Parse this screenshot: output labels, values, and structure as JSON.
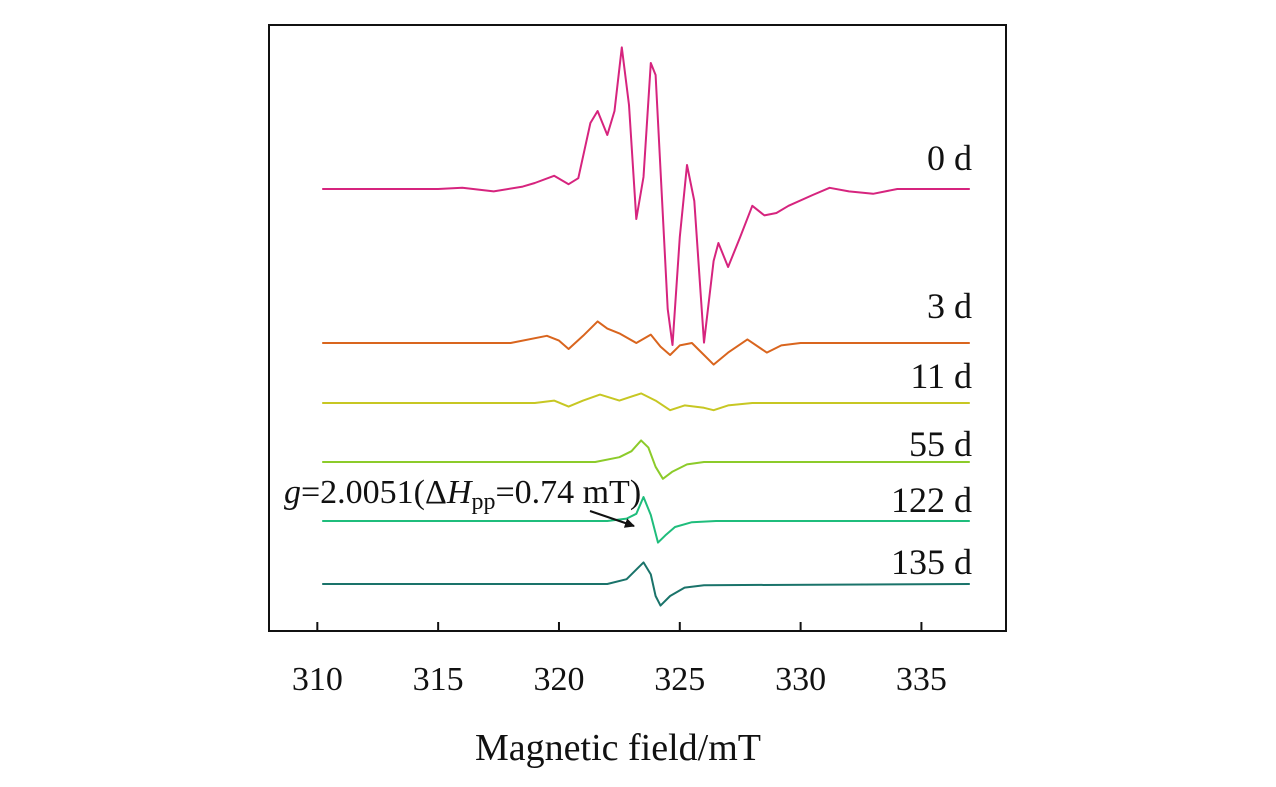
{
  "chart_data": {
    "type": "line",
    "title": "",
    "xlabel": "Magnetic field/mT",
    "ylabel": "",
    "xlim": [
      308.0,
      338.5
    ],
    "x_ticks": [
      310,
      315,
      320,
      325,
      330,
      335
    ],
    "y_axis_ticks": "none",
    "grid": false,
    "legend": "labels at right end of each trace",
    "x_range_data": [
      310.2,
      337.0
    ],
    "series": [
      {
        "name": "0 d",
        "color": "#d6247e",
        "baseline": 0,
        "points": [
          [
            310.2,
            0
          ],
          [
            315.0,
            0
          ],
          [
            316.0,
            1
          ],
          [
            317.3,
            -2
          ],
          [
            318.5,
            2
          ],
          [
            319.0,
            5
          ],
          [
            319.8,
            11
          ],
          [
            320.4,
            4
          ],
          [
            320.8,
            9
          ],
          [
            321.3,
            55
          ],
          [
            321.6,
            65
          ],
          [
            322.0,
            45
          ],
          [
            322.3,
            65
          ],
          [
            322.6,
            118
          ],
          [
            322.9,
            70
          ],
          [
            323.2,
            -25
          ],
          [
            323.5,
            10
          ],
          [
            323.8,
            105
          ],
          [
            324.0,
            95
          ],
          [
            324.5,
            -100
          ],
          [
            324.7,
            -130
          ],
          [
            325.0,
            -40
          ],
          [
            325.3,
            20
          ],
          [
            325.6,
            -10
          ],
          [
            326.0,
            -128
          ],
          [
            326.4,
            -60
          ],
          [
            326.6,
            -45
          ],
          [
            327.0,
            -65
          ],
          [
            327.5,
            -40
          ],
          [
            328.0,
            -14
          ],
          [
            328.5,
            -22
          ],
          [
            329.0,
            -20
          ],
          [
            329.5,
            -14
          ],
          [
            330.5,
            -5
          ],
          [
            331.2,
            1
          ],
          [
            332.0,
            -2
          ],
          [
            333.0,
            -4
          ],
          [
            334.0,
            0
          ],
          [
            337.0,
            0
          ]
        ]
      },
      {
        "name": "3 d",
        "color": "#d9651e",
        "baseline": 0,
        "points": [
          [
            310.2,
            0
          ],
          [
            318.0,
            0
          ],
          [
            319.5,
            6
          ],
          [
            320.0,
            2
          ],
          [
            320.4,
            -5
          ],
          [
            321.0,
            6
          ],
          [
            321.6,
            18
          ],
          [
            322.0,
            12
          ],
          [
            322.5,
            8
          ],
          [
            323.2,
            0
          ],
          [
            323.8,
            7
          ],
          [
            324.2,
            -3
          ],
          [
            324.6,
            -10
          ],
          [
            325.0,
            -2
          ],
          [
            325.5,
            0
          ],
          [
            326.0,
            -10
          ],
          [
            326.4,
            -18
          ],
          [
            327.0,
            -8
          ],
          [
            327.8,
            3
          ],
          [
            328.6,
            -8
          ],
          [
            329.2,
            -2
          ],
          [
            330.0,
            0
          ],
          [
            337.0,
            0
          ]
        ]
      },
      {
        "name": "11 d",
        "color": "#c7c723",
        "baseline": 0,
        "points": [
          [
            310.2,
            0
          ],
          [
            319.0,
            0
          ],
          [
            319.8,
            2
          ],
          [
            320.4,
            -3
          ],
          [
            321.0,
            2
          ],
          [
            321.7,
            7
          ],
          [
            322.5,
            2
          ],
          [
            323.4,
            8
          ],
          [
            324.0,
            2
          ],
          [
            324.6,
            -6
          ],
          [
            325.2,
            -2
          ],
          [
            326.0,
            -4
          ],
          [
            326.4,
            -6
          ],
          [
            327.0,
            -2
          ],
          [
            328.0,
            0
          ],
          [
            337.0,
            0
          ]
        ]
      },
      {
        "name": "55 d",
        "color": "#8ccb2a",
        "baseline": 0,
        "points": [
          [
            310.2,
            0
          ],
          [
            321.5,
            0
          ],
          [
            322.5,
            4
          ],
          [
            323.0,
            9
          ],
          [
            323.4,
            18
          ],
          [
            323.7,
            12
          ],
          [
            324.0,
            -4
          ],
          [
            324.3,
            -14
          ],
          [
            324.7,
            -8
          ],
          [
            325.3,
            -2
          ],
          [
            326.0,
            0
          ],
          [
            337.0,
            0
          ]
        ]
      },
      {
        "name": "122 d",
        "color": "#1fbd7c",
        "baseline": 0,
        "points": [
          [
            310.2,
            0
          ],
          [
            322.0,
            0
          ],
          [
            322.8,
            2
          ],
          [
            323.2,
            6
          ],
          [
            323.5,
            20
          ],
          [
            323.8,
            5
          ],
          [
            324.1,
            -18
          ],
          [
            324.4,
            -12
          ],
          [
            324.8,
            -5
          ],
          [
            325.5,
            -1
          ],
          [
            326.5,
            0
          ],
          [
            337.0,
            0
          ]
        ]
      },
      {
        "name": "135 d",
        "color": "#1a736a",
        "baseline": 0,
        "points": [
          [
            310.2,
            0
          ],
          [
            322.0,
            0
          ],
          [
            322.8,
            4
          ],
          [
            323.2,
            12
          ],
          [
            323.5,
            18
          ],
          [
            323.8,
            8
          ],
          [
            324.0,
            -10
          ],
          [
            324.2,
            -18
          ],
          [
            324.6,
            -10
          ],
          [
            325.2,
            -3
          ],
          [
            326.0,
            -1
          ],
          [
            337.0,
            0
          ]
        ]
      }
    ],
    "annotation": {
      "g_text": "g",
      "rest_text": "=2.0051(Δ",
      "h_text": "H",
      "sub_text": "pp",
      "tail_text": "=0.74 mT)",
      "arrow_target_series": "122 d",
      "arrow_target_x": 324.1
    }
  }
}
